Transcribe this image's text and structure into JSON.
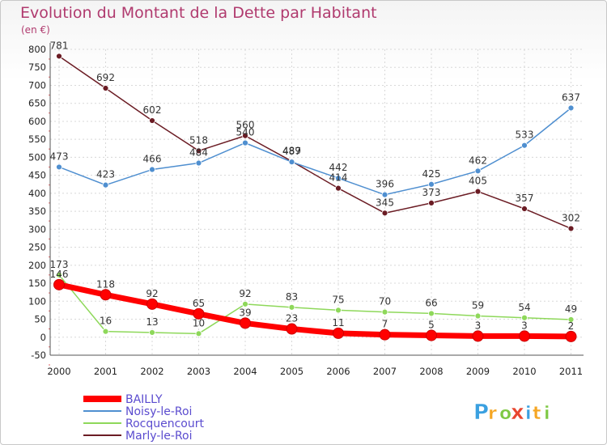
{
  "chart_data": {
    "type": "line",
    "title": "Evolution du Montant de la Dette par Habitant",
    "subtitle": "(en €)",
    "x": [
      "2000",
      "2001",
      "2002",
      "2003",
      "2004",
      "2005",
      "2006",
      "2007",
      "2008",
      "2009",
      "2010",
      "2011"
    ],
    "ylim": [
      -50,
      800
    ],
    "yticks": [
      -50,
      0,
      50,
      100,
      150,
      200,
      250,
      300,
      350,
      400,
      450,
      500,
      550,
      600,
      650,
      700,
      750,
      800
    ],
    "grid": true,
    "legend_position": "bottom-left",
    "series": [
      {
        "name": "BAILLY",
        "color": "#ff0000",
        "values": [
          146,
          118,
          92,
          65,
          39,
          23,
          11,
          7,
          5,
          3,
          3,
          2
        ]
      },
      {
        "name": "Noisy-le-Roi",
        "color": "#4f8fd0",
        "values": [
          473,
          423,
          466,
          484,
          540,
          487,
          442,
          396,
          425,
          462,
          533,
          637
        ]
      },
      {
        "name": "Rocquencourt",
        "color": "#8ed85a",
        "values": [
          173,
          16,
          13,
          10,
          92,
          83,
          75,
          70,
          66,
          59,
          54,
          49
        ]
      },
      {
        "name": "Marly-le-Roi",
        "color": "#6b1c24",
        "values": [
          781,
          692,
          602,
          518,
          560,
          489,
          414,
          345,
          373,
          405,
          357,
          302
        ]
      }
    ],
    "logo": "Proxiti"
  }
}
